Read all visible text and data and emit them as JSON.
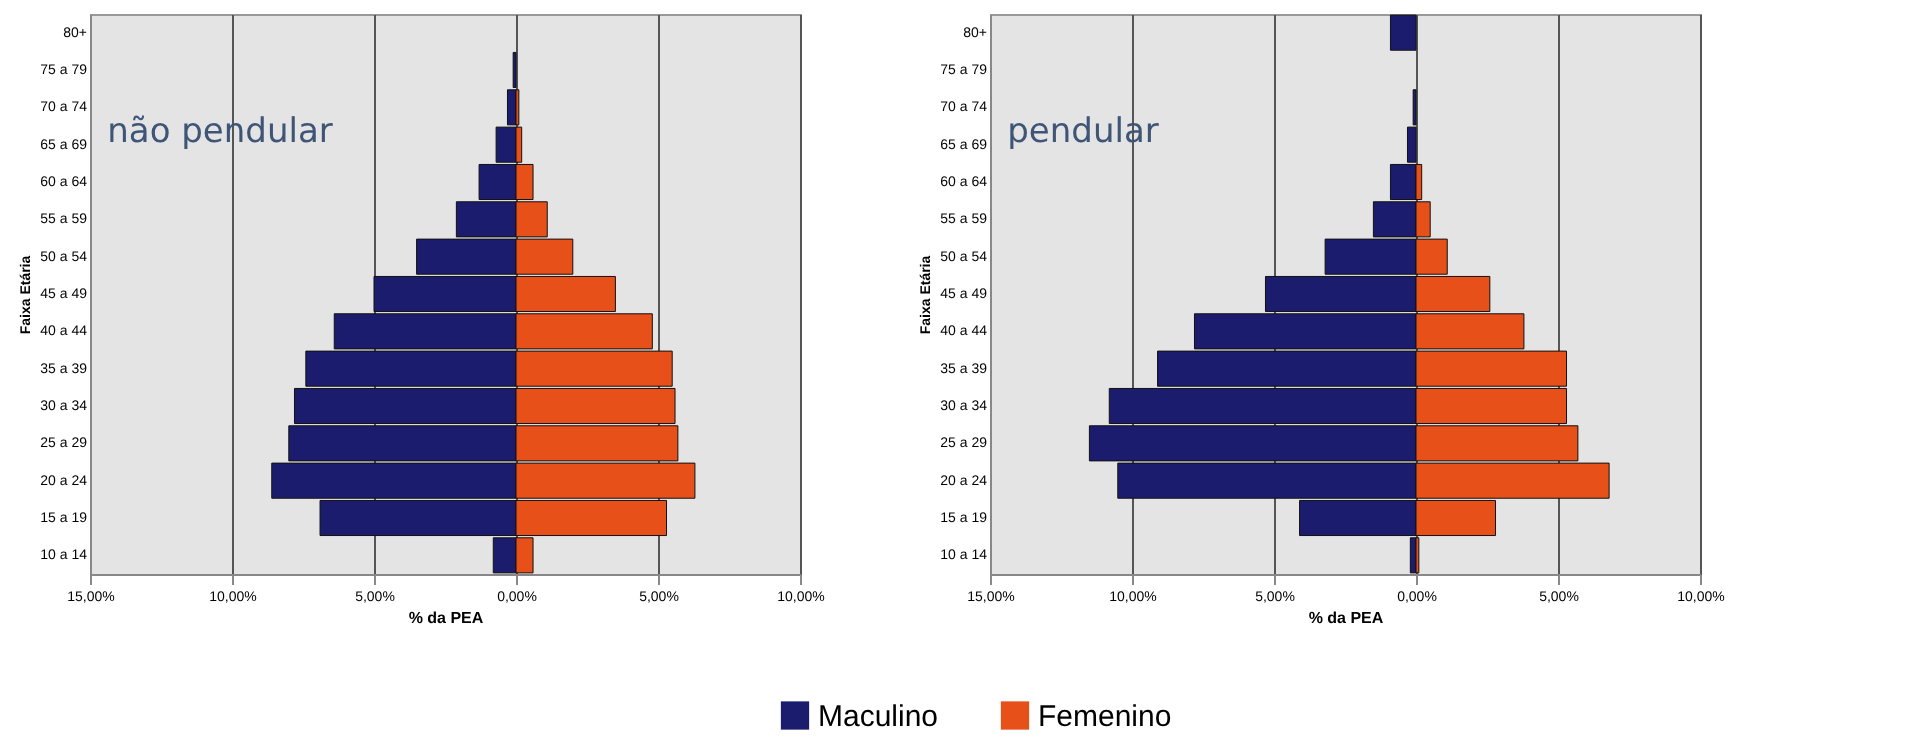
{
  "chart_data": [
    {
      "type": "bar",
      "orientation": "horizontal",
      "title": "não pendular",
      "xlabel": "% da PEA",
      "ylabel": "Faixa Etária",
      "categories": [
        "80+",
        "75 a 79",
        "70 a 74",
        "65 a 69",
        "60 a 64",
        "55 a 59",
        "50 a 54",
        "45 a 49",
        "40 a 44",
        "35 a 39",
        "30 a 34",
        "25 a 29",
        "20 a 24",
        "15 a 19",
        "10 a 14"
      ],
      "series": [
        {
          "name": "Maculino",
          "color": "#1c1c6e",
          "values": [
            null,
            -0.1,
            -0.3,
            -0.7,
            -1.3,
            -2.1,
            -3.5,
            -5.0,
            -6.4,
            -7.4,
            -7.8,
            -8.0,
            -8.6,
            -6.9,
            -0.8
          ]
        },
        {
          "name": "Femenino",
          "color": "#e8501a",
          "values": [
            null,
            null,
            0.1,
            0.2,
            0.6,
            1.1,
            2.0,
            3.5,
            4.8,
            5.5,
            5.6,
            5.7,
            6.3,
            5.3,
            0.6
          ]
        }
      ],
      "stacked": true,
      "xlim": [
        -15,
        10
      ],
      "xticks": [
        {
          "value": -15,
          "label": "15,00%"
        },
        {
          "value": -10,
          "label": "10,00%"
        },
        {
          "value": -5,
          "label": "5,00%"
        },
        {
          "value": 0,
          "label": "0,00%"
        },
        {
          "value": 5,
          "label": "5,00%"
        },
        {
          "value": 10,
          "label": "10,00%"
        }
      ],
      "grid": "x",
      "legend": "bottom"
    },
    {
      "type": "bar",
      "orientation": "horizontal",
      "title": "pendular",
      "xlabel": "% da PEA",
      "ylabel": "Faixa Etária",
      "categories": [
        "80+",
        "75 a 79",
        "70 a 74",
        "65 a 69",
        "60 a 64",
        "55 a 59",
        "50 a 54",
        "45 a 49",
        "40 a 44",
        "35 a 39",
        "30 a 34",
        "25 a 29",
        "20 a 24",
        "15 a 19",
        "10 a 14"
      ],
      "series": [
        {
          "name": "Maculino",
          "color": "#1c1c6e",
          "values": [
            -0.9,
            null,
            -0.1,
            -0.3,
            -0.9,
            -1.5,
            -3.2,
            -5.3,
            -7.8,
            -9.1,
            -10.8,
            -11.5,
            -10.5,
            -4.1,
            -0.2
          ]
        },
        {
          "name": "Femenino",
          "color": "#e8501a",
          "values": [
            null,
            null,
            null,
            null,
            0.2,
            0.5,
            1.1,
            2.6,
            3.8,
            5.3,
            5.3,
            5.7,
            6.8,
            2.8,
            0.1
          ]
        }
      ],
      "stacked": true,
      "xlim": [
        -15,
        10
      ],
      "xticks": [
        {
          "value": -15,
          "label": "15,00%"
        },
        {
          "value": -10,
          "label": "10,00%"
        },
        {
          "value": -5,
          "label": "5,00%"
        },
        {
          "value": 0,
          "label": "0,00%"
        },
        {
          "value": 5,
          "label": "5,00%"
        },
        {
          "value": 10,
          "label": "10,00%"
        }
      ],
      "grid": "x",
      "legend": "bottom"
    }
  ]
}
